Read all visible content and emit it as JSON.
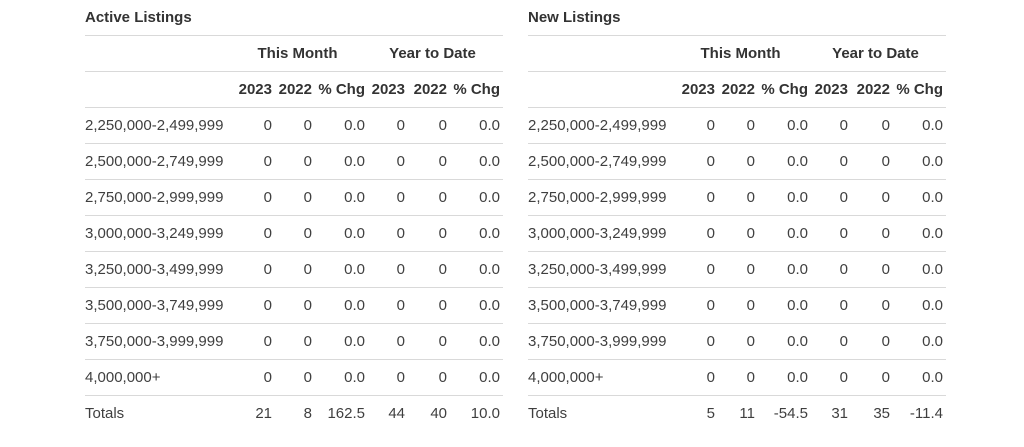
{
  "colors": {
    "text": "#3f3f3f",
    "header_text": "#333333",
    "separator_line": "#d9d9d9",
    "background": "#ffffff"
  },
  "tables": [
    {
      "title": "Active Listings",
      "group_headers": [
        "This Month",
        "Year to Date"
      ],
      "columns": [
        "2023",
        "2022",
        "% Chg",
        "2023",
        "2022",
        "% Chg"
      ],
      "rows": [
        {
          "label": "2,250,000-2,499,999",
          "values": [
            "0",
            "0",
            "0.0",
            "0",
            "0",
            "0.0"
          ]
        },
        {
          "label": "2,500,000-2,749,999",
          "values": [
            "0",
            "0",
            "0.0",
            "0",
            "0",
            "0.0"
          ]
        },
        {
          "label": "2,750,000-2,999,999",
          "values": [
            "0",
            "0",
            "0.0",
            "0",
            "0",
            "0.0"
          ]
        },
        {
          "label": "3,000,000-3,249,999",
          "values": [
            "0",
            "0",
            "0.0",
            "0",
            "0",
            "0.0"
          ]
        },
        {
          "label": "3,250,000-3,499,999",
          "values": [
            "0",
            "0",
            "0.0",
            "0",
            "0",
            "0.0"
          ]
        },
        {
          "label": "3,500,000-3,749,999",
          "values": [
            "0",
            "0",
            "0.0",
            "0",
            "0",
            "0.0"
          ]
        },
        {
          "label": "3,750,000-3,999,999",
          "values": [
            "0",
            "0",
            "0.0",
            "0",
            "0",
            "0.0"
          ]
        },
        {
          "label": "4,000,000+",
          "values": [
            "0",
            "0",
            "0.0",
            "0",
            "0",
            "0.0"
          ]
        }
      ],
      "totals": {
        "label": "Totals",
        "values": [
          "21",
          "8",
          "162.5",
          "44",
          "40",
          "10.0"
        ]
      }
    },
    {
      "title": "New Listings",
      "group_headers": [
        "This Month",
        "Year to Date"
      ],
      "columns": [
        "2023",
        "2022",
        "% Chg",
        "2023",
        "2022",
        "% Chg"
      ],
      "rows": [
        {
          "label": "2,250,000-2,499,999",
          "values": [
            "0",
            "0",
            "0.0",
            "0",
            "0",
            "0.0"
          ]
        },
        {
          "label": "2,500,000-2,749,999",
          "values": [
            "0",
            "0",
            "0.0",
            "0",
            "0",
            "0.0"
          ]
        },
        {
          "label": "2,750,000-2,999,999",
          "values": [
            "0",
            "0",
            "0.0",
            "0",
            "0",
            "0.0"
          ]
        },
        {
          "label": "3,000,000-3,249,999",
          "values": [
            "0",
            "0",
            "0.0",
            "0",
            "0",
            "0.0"
          ]
        },
        {
          "label": "3,250,000-3,499,999",
          "values": [
            "0",
            "0",
            "0.0",
            "0",
            "0",
            "0.0"
          ]
        },
        {
          "label": "3,500,000-3,749,999",
          "values": [
            "0",
            "0",
            "0.0",
            "0",
            "0",
            "0.0"
          ]
        },
        {
          "label": "3,750,000-3,999,999",
          "values": [
            "0",
            "0",
            "0.0",
            "0",
            "0",
            "0.0"
          ]
        },
        {
          "label": "4,000,000+",
          "values": [
            "0",
            "0",
            "0.0",
            "0",
            "0",
            "0.0"
          ]
        }
      ],
      "totals": {
        "label": "Totals",
        "values": [
          "5",
          "11",
          "-54.5",
          "31",
          "35",
          "-11.4"
        ]
      }
    }
  ]
}
